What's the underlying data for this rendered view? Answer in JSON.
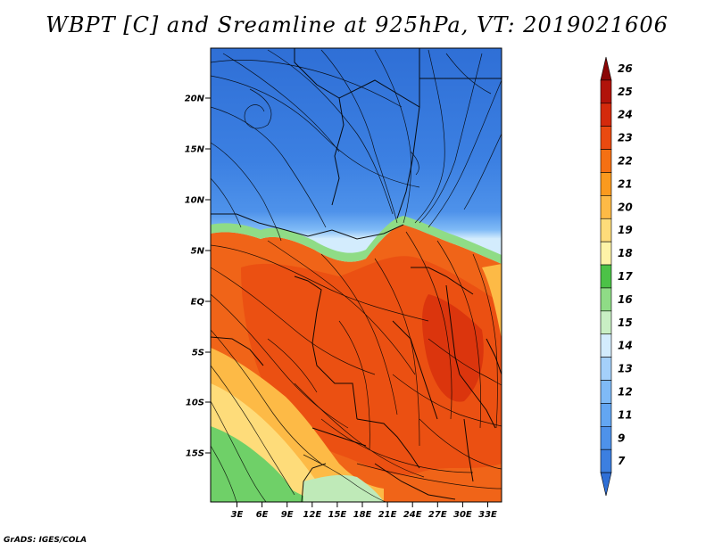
{
  "title": "WBPT [C] and Sreamline at 925hPa, VT: 2019021606",
  "credit": "GrADS: IGES/COLA",
  "map": {
    "lat_labels": [
      "20N",
      "15N",
      "10N",
      "5N",
      "EQ",
      "5S",
      "10S",
      "15S"
    ],
    "lon_labels": [
      "3E",
      "6E",
      "9E",
      "12E",
      "15E",
      "18E",
      "21E",
      "24E",
      "27E",
      "30E",
      "33E"
    ],
    "lon_range": [
      0,
      35
    ],
    "lat_range": [
      -20,
      24.5
    ]
  },
  "colorbar": {
    "labels": [
      "7",
      "9",
      "11",
      "12",
      "13",
      "14",
      "15",
      "16",
      "17",
      "18",
      "19",
      "20",
      "21",
      "22",
      "23",
      "24",
      "25",
      "26"
    ],
    "colors": [
      "#2f6fd6",
      "#3c7fe0",
      "#4e92ea",
      "#63a6f2",
      "#7fbaf6",
      "#a4d0fa",
      "#d3ecfd",
      "#c9efc4",
      "#8fdc86",
      "#4cc247",
      "#fef3a7",
      "#fedc7a",
      "#fdba46",
      "#fa9a1e",
      "#f57013",
      "#ea4a10",
      "#d42a0c",
      "#b1130a",
      "#8a0606"
    ]
  }
}
